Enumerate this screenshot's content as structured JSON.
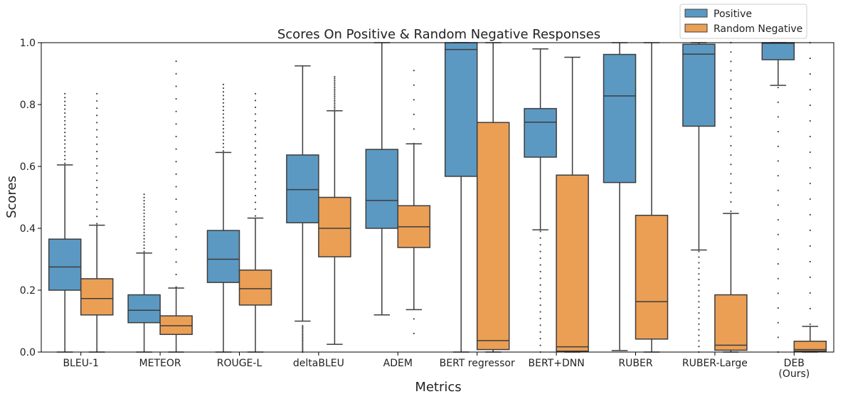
{
  "chart_data": {
    "type": "box",
    "title": "Scores On Positive & Random Negative Responses",
    "xlabel": "Metrics",
    "ylabel": "Scores",
    "ylim": [
      0,
      1.0
    ],
    "yticks": [
      "0.0",
      "0.2",
      "0.4",
      "0.6",
      "0.8",
      "1.0"
    ],
    "legend_position": "top-right",
    "categories": [
      "BLEU-1",
      "METEOR",
      "ROUGE-L",
      "deltaBLEU",
      "ADEM",
      "BERT regressor",
      "BERT+DNN",
      "RUBER",
      "RUBER-Large",
      "DEB\n(Ours)"
    ],
    "series": [
      {
        "name": "Positive",
        "color": "#5b99c2",
        "boxes": [
          {
            "whislo": 0.0,
            "q1": 0.2,
            "med": 0.275,
            "q3": 0.365,
            "whishi": 0.605
          },
          {
            "whislo": 0.0,
            "q1": 0.095,
            "med": 0.135,
            "q3": 0.185,
            "whishi": 0.32
          },
          {
            "whislo": 0.0,
            "q1": 0.225,
            "med": 0.3,
            "q3": 0.393,
            "whishi": 0.645
          },
          {
            "whislo": 0.1,
            "q1": 0.418,
            "med": 0.525,
            "q3": 0.637,
            "whishi": 0.925
          },
          {
            "whislo": 0.12,
            "q1": 0.4,
            "med": 0.49,
            "q3": 0.655,
            "whishi": 1.0
          },
          {
            "whislo": 0.0,
            "q1": 0.568,
            "med": 0.978,
            "q3": 1.0,
            "whishi": 1.0
          },
          {
            "whislo": 0.395,
            "q1": 0.63,
            "med": 0.743,
            "q3": 0.787,
            "whishi": 0.98
          },
          {
            "whislo": 0.005,
            "q1": 0.548,
            "med": 0.828,
            "q3": 0.962,
            "whishi": 1.0
          },
          {
            "whislo": 0.33,
            "q1": 0.73,
            "med": 0.963,
            "q3": 0.995,
            "whishi": 1.0
          },
          {
            "whislo": 0.862,
            "q1": 0.945,
            "med": 0.998,
            "q3": 1.0,
            "whishi": 1.0
          }
        ]
      },
      {
        "name": "Random Negative",
        "color": "#eb9f55",
        "boxes": [
          {
            "whislo": 0.0,
            "q1": 0.12,
            "med": 0.173,
            "q3": 0.237,
            "whishi": 0.41
          },
          {
            "whislo": 0.0,
            "q1": 0.057,
            "med": 0.085,
            "q3": 0.117,
            "whishi": 0.207
          },
          {
            "whislo": 0.0,
            "q1": 0.152,
            "med": 0.205,
            "q3": 0.265,
            "whishi": 0.433
          },
          {
            "whislo": 0.025,
            "q1": 0.308,
            "med": 0.4,
            "q3": 0.5,
            "whishi": 0.78
          },
          {
            "whislo": 0.137,
            "q1": 0.338,
            "med": 0.405,
            "q3": 0.473,
            "whishi": 0.673
          },
          {
            "whislo": 0.0,
            "q1": 0.008,
            "med": 0.037,
            "q3": 0.742,
            "whishi": 1.0
          },
          {
            "whislo": 0.0,
            "q1": 0.003,
            "med": 0.017,
            "q3": 0.572,
            "whishi": 0.953
          },
          {
            "whislo": 0.0,
            "q1": 0.042,
            "med": 0.163,
            "q3": 0.442,
            "whishi": 1.0
          },
          {
            "whislo": 0.0,
            "q1": 0.006,
            "med": 0.022,
            "q3": 0.185,
            "whishi": 0.448
          },
          {
            "whislo": 0.0,
            "q1": 0.003,
            "med": 0.008,
            "q3": 0.035,
            "whishi": 0.083
          }
        ]
      }
    ],
    "outliers_note_values": {
      "BLEU-1": {
        "Positive": [
          0.61,
          0.835
        ],
        "Random Negative": [
          0.415,
          0.835
        ]
      },
      "METEOR": {
        "Positive": [
          0.325,
          0.51
        ],
        "Random Negative": [
          0.21,
          0.415,
          0.94
        ]
      },
      "ROUGE-L": {
        "Positive": [
          0.65,
          0.865
        ],
        "Random Negative": [
          0.44,
          0.835
        ]
      },
      "deltaBLEU": {
        "Positive": [
          0.0,
          0.085
        ],
        "Random Negative": [
          0.785,
          0.89
        ]
      },
      "ADEM": {
        "Random Negative": [
          0.06,
          0.13,
          0.68,
          0.91
        ]
      },
      "BERT+DNN": {
        "Positive": [
          0.0,
          0.39
        ]
      },
      "RUBER-Large": {
        "Positive": [
          0.0,
          0.325
        ],
        "Random Negative": [
          0.455,
          1.0
        ]
      },
      "DEB\n(Ours)": {
        "Positive": [
          0.0,
          0.855
        ],
        "Random Negative": [
          0.09,
          1.0
        ]
      }
    }
  }
}
